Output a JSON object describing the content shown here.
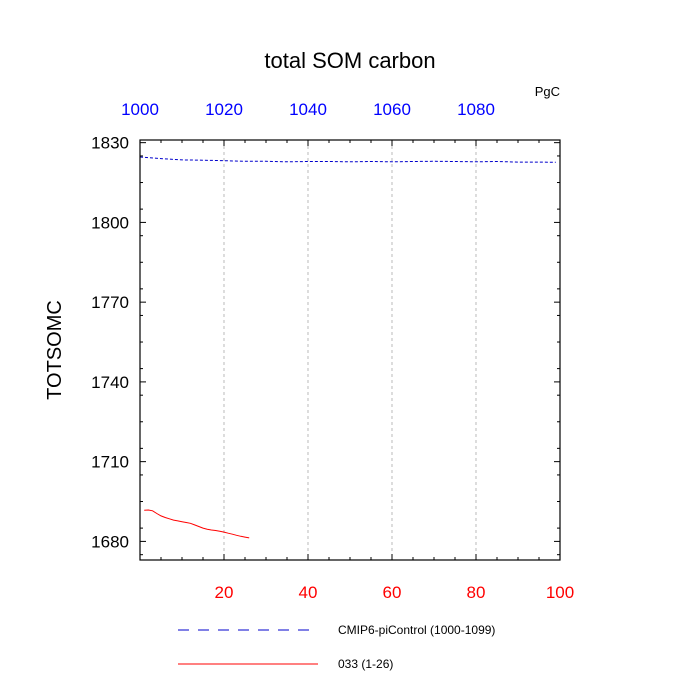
{
  "chart_data": {
    "type": "line",
    "title": "total SOM carbon",
    "units_label": "PgC",
    "ylabel": "TOTSOMC",
    "ylim": [
      1673,
      1831
    ],
    "y_ticks": [
      1680,
      1710,
      1740,
      1770,
      1800,
      1830
    ],
    "y_tick_labels": [
      "1680",
      "1710",
      "1740",
      "1770",
      "1800",
      "1830"
    ],
    "x_bottom": {
      "lim": [
        0,
        100
      ],
      "ticks": [
        20,
        40,
        60,
        80,
        100
      ],
      "tick_labels": [
        "20",
        "40",
        "60",
        "80",
        "100"
      ],
      "color": "#ff0000"
    },
    "x_top": {
      "lim": [
        1000,
        1100
      ],
      "ticks": [
        1000,
        1020,
        1040,
        1060,
        1080
      ],
      "tick_labels": [
        "1000",
        "1020",
        "1040",
        "1060",
        "1080"
      ],
      "color": "#0000ff"
    },
    "grid": "vertical dashed",
    "legend_placement": "bottom",
    "series": [
      {
        "name": "CMIP6-piControl (1000-1099)",
        "axis": "top",
        "color": "#0000cc",
        "dash": "dashed",
        "x": [
          1000,
          1005,
          1010,
          1015,
          1020,
          1025,
          1030,
          1035,
          1040,
          1045,
          1050,
          1055,
          1060,
          1065,
          1070,
          1075,
          1080,
          1085,
          1090,
          1095,
          1099
        ],
        "values": [
          1824.6,
          1824.0,
          1823.5,
          1823.4,
          1823.2,
          1823.0,
          1823.0,
          1822.8,
          1822.9,
          1822.9,
          1822.8,
          1822.9,
          1822.8,
          1822.9,
          1823.0,
          1822.9,
          1822.8,
          1822.9,
          1822.7,
          1822.7,
          1822.6
        ]
      },
      {
        "name": "033 (1-26)",
        "axis": "bottom",
        "color": "#ff0000",
        "dash": "solid",
        "x": [
          1,
          2,
          3,
          4,
          5,
          6,
          7,
          8,
          9,
          10,
          11,
          12,
          13,
          14,
          15,
          16,
          17,
          18,
          19,
          20,
          21,
          22,
          23,
          24,
          25,
          26
        ],
        "values": [
          1691.7,
          1691.8,
          1691.5,
          1690.5,
          1689.6,
          1689.0,
          1688.5,
          1688.0,
          1687.7,
          1687.4,
          1687.1,
          1686.8,
          1686.2,
          1685.6,
          1685.0,
          1684.6,
          1684.3,
          1684.1,
          1683.8,
          1683.5,
          1683.1,
          1682.7,
          1682.3,
          1681.9,
          1681.6,
          1681.3
        ]
      }
    ]
  }
}
